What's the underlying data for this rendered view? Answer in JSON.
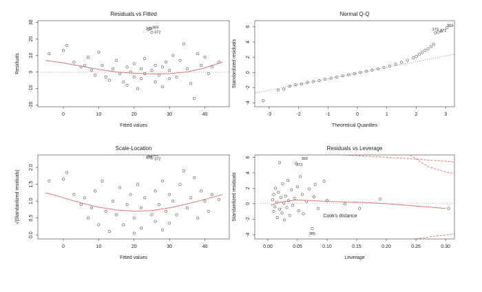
{
  "chart_data": [
    {
      "type": "scatter",
      "title": "Residuals vs Fitted",
      "xlabel": "Fitted values",
      "ylabel": "Residuals",
      "xlim": [
        -7.2,
        46.9
      ],
      "ylim": [
        -21,
        31
      ],
      "xticks": [
        0,
        10,
        20,
        30,
        40
      ],
      "yticks": [
        -20,
        -10,
        0,
        10,
        20,
        30
      ],
      "hline": 0,
      "x": [
        -4,
        0,
        1,
        3,
        5,
        6,
        7,
        8,
        9,
        10,
        11,
        12,
        13,
        14,
        15,
        16,
        17,
        18,
        18,
        19,
        20,
        20,
        21,
        22,
        22,
        23,
        23,
        24,
        24.5,
        25,
        25,
        26,
        26,
        27,
        28,
        28,
        29,
        30,
        30,
        31,
        32,
        33,
        34,
        35,
        36,
        37,
        38,
        39,
        40,
        41,
        42,
        44
      ],
      "y": [
        11,
        13,
        16,
        6,
        3,
        4,
        9,
        1,
        -2,
        12,
        4,
        -3,
        -5,
        2,
        7,
        -1,
        -6,
        3,
        -8,
        0,
        5,
        -3,
        -10,
        2,
        -4,
        8,
        -1,
        25.5,
        26,
        24,
        1,
        -6,
        4,
        -2,
        3,
        -9,
        6,
        -4,
        1,
        10,
        -3,
        7,
        17,
        2,
        -7,
        -16,
        11,
        4,
        9,
        -1,
        3,
        6
      ],
      "lines": [
        {
          "color": "#e57373",
          "dash": "none",
          "x": [
            -5,
            0,
            5,
            10,
            15,
            20,
            25,
            30,
            35,
            40,
            45
          ],
          "y": [
            7,
            5.5,
            3.5,
            1.5,
            0,
            -0.8,
            -1.2,
            -1,
            0,
            2.5,
            6
          ]
        }
      ],
      "annotations": [
        {
          "text": "369",
          "x": 26,
          "y": 26.8
        },
        {
          "text": "373",
          "x": 24.2,
          "y": 26.2
        },
        {
          "text": "372",
          "x": 26.6,
          "y": 24
        }
      ]
    },
    {
      "type": "scatter",
      "title": "Normal Q-Q",
      "xlabel": "Theoretical Quantiles",
      "ylabel": "Standardized residuals",
      "xlim": [
        -3.49,
        3.3
      ],
      "ylim": [
        -4.5,
        6.8
      ],
      "xticks": [
        -3,
        -2,
        -1,
        0,
        1,
        2,
        3
      ],
      "yticks": [
        -4,
        -2,
        0,
        2,
        4,
        6
      ],
      "x": [
        -3.2,
        -2.7,
        -2.5,
        -2.3,
        -2.1,
        -1.9,
        -1.7,
        -1.5,
        -1.3,
        -1.1,
        -0.9,
        -0.7,
        -0.5,
        -0.3,
        -0.1,
        0.1,
        0.3,
        0.5,
        0.7,
        0.9,
        1.1,
        1.3,
        1.5,
        1.7,
        1.9,
        2.0,
        2.1,
        2.2,
        2.3,
        2.4,
        2.5,
        2.6,
        2.65,
        2.75,
        2.85,
        3.05
      ],
      "y": [
        -3.7,
        -2.3,
        -2.2,
        -1.8,
        -1.6,
        -1.5,
        -1.3,
        -1.2,
        -1.05,
        -0.9,
        -0.75,
        -0.6,
        -0.45,
        -0.3,
        -0.15,
        0,
        0.15,
        0.3,
        0.45,
        0.65,
        0.85,
        1.1,
        1.35,
        1.6,
        1.9,
        2.1,
        2.4,
        2.6,
        2.9,
        3.1,
        3.4,
        3.7,
        5.2,
        5.3,
        5.4,
        5.9
      ],
      "lines": [
        {
          "color": "#888888",
          "dash": "1,2",
          "x": [
            -3.49,
            3.3
          ],
          "y": [
            -2.7,
            2.4
          ]
        }
      ],
      "annotations": [
        {
          "text": "369",
          "x": 3.15,
          "y": 6.1
        },
        {
          "text": "373",
          "x": 2.65,
          "y": 5.6
        },
        {
          "text": "372",
          "x": 2.92,
          "y": 5.5
        }
      ]
    },
    {
      "type": "scatter",
      "title": "Scale-Location",
      "xlabel": "Fitted values",
      "ylabel": "√|Standardized residuals|",
      "xlim": [
        -7.2,
        46.9
      ],
      "ylim": [
        -0.12,
        2.37
      ],
      "xticks": [
        0,
        10,
        20,
        30,
        40
      ],
      "yticks": [
        {
          "value": 0,
          "label": "0.0"
        },
        {
          "value": 0.5,
          "label": "0.5"
        },
        {
          "value": 1,
          "label": "1.0"
        },
        {
          "value": 1.5,
          "label": "1.5"
        },
        {
          "value": 2,
          "label": "2.0"
        }
      ],
      "x": [
        -4,
        0,
        1,
        3,
        5,
        6,
        7,
        8,
        9,
        10,
        11,
        12,
        13,
        14,
        15,
        16,
        17,
        18,
        19,
        20,
        20,
        21,
        22,
        22,
        23,
        24,
        24.5,
        25,
        25,
        26,
        26,
        27,
        28,
        28,
        29,
        30,
        30,
        31,
        32,
        33,
        34,
        35,
        36,
        37,
        38,
        39,
        40,
        41,
        42,
        44
      ],
      "y": [
        1.6,
        1.65,
        1.85,
        1.2,
        0.9,
        1.1,
        0.5,
        0.8,
        1.3,
        0.3,
        1.6,
        0.7,
        0.1,
        1.0,
        0.6,
        1.4,
        0.3,
        0.9,
        1.2,
        0.5,
        0.05,
        1.5,
        0.8,
        0.2,
        1.1,
        2.3,
        2.35,
        2.28,
        0.6,
        1.3,
        0.4,
        0.9,
        1.6,
        0.15,
        0.7,
        1.2,
        0.35,
        1.0,
        0.6,
        1.5,
        1.9,
        0.8,
        1.1,
        1.7,
        0.5,
        1.3,
        1.0,
        0.7,
        1.2,
        1.05
      ],
      "lines": [
        {
          "color": "#e57373",
          "dash": "none",
          "x": [
            -5,
            0,
            5,
            10,
            15,
            20,
            25,
            30,
            35,
            40,
            45
          ],
          "y": [
            1.25,
            1.1,
            0.95,
            0.82,
            0.74,
            0.7,
            0.72,
            0.8,
            0.92,
            1.05,
            1.2
          ]
        }
      ],
      "annotations": [
        {
          "text": "369",
          "x": 26,
          "y": 2.36
        },
        {
          "text": "373",
          "x": 24.2,
          "y": 2.3
        },
        {
          "text": "372",
          "x": 26.6,
          "y": 2.25
        }
      ]
    },
    {
      "type": "scatter",
      "title": "Residuals vs Leverage",
      "xlabel": "Leverage",
      "ylabel": "Standardized residuals",
      "xlim": [
        -0.022,
        0.315
      ],
      "ylim": [
        -4.55,
        6.3
      ],
      "xticks": [
        {
          "value": 0,
          "label": "0.00"
        },
        {
          "value": 0.05,
          "label": "0.05"
        },
        {
          "value": 0.1,
          "label": "0.10"
        },
        {
          "value": 0.15,
          "label": "0.15"
        },
        {
          "value": 0.2,
          "label": "0.20"
        },
        {
          "value": 0.25,
          "label": "0.25"
        },
        {
          "value": 0.3,
          "label": "0.30"
        }
      ],
      "yticks": [
        -4,
        -2,
        0,
        2,
        4,
        6
      ],
      "hline": 0,
      "x": [
        0.008,
        0.01,
        0.01,
        0.012,
        0.013,
        0.015,
        0.016,
        0.018,
        0.02,
        0.02,
        0.022,
        0.024,
        0.025,
        0.027,
        0.028,
        0.03,
        0.032,
        0.034,
        0.035,
        0.037,
        0.04,
        0.042,
        0.045,
        0.048,
        0.05,
        0.052,
        0.055,
        0.058,
        0.06,
        0.065,
        0.07,
        0.075,
        0.078,
        0.08,
        0.085,
        0.095,
        0.1,
        0.13,
        0.155,
        0.19,
        0.305
      ],
      "y": [
        0.5,
        -1,
        1.2,
        -0.4,
        2,
        0.2,
        -1.8,
        1.5,
        -0.7,
        5.3,
        0.8,
        -1.2,
        2.6,
        0.1,
        -2.1,
        1,
        -0.5,
        3,
        0.4,
        -1.5,
        1.8,
        -0.2,
        0.7,
        5.2,
        2.2,
        -0.9,
        3.5,
        1.2,
        -1.3,
        0.3,
        1.9,
        -3.2,
        0.9,
        2.5,
        -0.6,
        2.9,
        0.4,
        0,
        -0.6,
        0.6,
        -0.6
      ],
      "lines": [
        {
          "color": "#e57373",
          "dash": "none",
          "x": [
            0.005,
            0.02,
            0.05,
            0.1,
            0.15,
            0.2,
            0.25,
            0.3
          ],
          "y": [
            -0.2,
            0.2,
            0.5,
            0.3,
            0.2,
            0,
            -0.3,
            -0.6
          ]
        },
        {
          "color": "#e57373",
          "dash": "3,2",
          "x": [
            0.13,
            0.2,
            0.26,
            0.315
          ],
          "y": [
            6.3,
            6.0,
            5.7,
            5.4
          ]
        },
        {
          "color": "#e57373",
          "dash": "3,2",
          "x": [
            0.24,
            0.27,
            0.3,
            0.315
          ],
          "y": [
            6.3,
            4.8,
            4.1,
            3.9
          ]
        },
        {
          "color": "#e57373",
          "dash": "3,2",
          "x": [
            0.25,
            0.28,
            0.315
          ],
          "y": [
            -4.55,
            -4.2,
            -3.9
          ]
        }
      ],
      "annotations": [
        {
          "text": "369",
          "x": 0.062,
          "y": 5.8
        },
        {
          "text": "373",
          "x": 0.053,
          "y": 5.0
        },
        {
          "text": "385",
          "x": 0.075,
          "y": -3.9
        },
        {
          "text": "Cook's distance",
          "x": 0.122,
          "y": -1.6
        }
      ]
    }
  ]
}
